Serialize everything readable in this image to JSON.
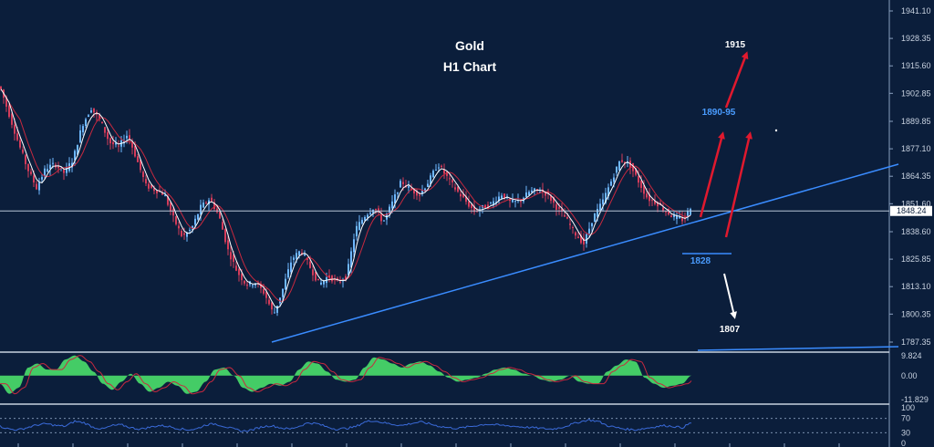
{
  "chart_data": {
    "type": "candlestick-with-indicators",
    "title": "Gold",
    "subtitle": "H1 Chart",
    "colors": {
      "background": "#0b1e3b",
      "bull": "#6fb8ff",
      "bear": "#d43c5a",
      "trendline": "#3a8cff",
      "up_arrow": "#e0192e",
      "down_arrow": "#ffffff",
      "ma_white": "#ffffff",
      "ma_red": "#c8293f",
      "macd": "#44cc66",
      "rsi": "#3a6ad8",
      "grid_line": "#8aa0bf"
    },
    "price_axis": {
      "min": 1787.35,
      "max": 1941.1,
      "ticks": [
        "1941.10",
        "1928.35",
        "1915.60",
        "1902.85",
        "1889.85",
        "1877.10",
        "1864.35",
        "1851.60",
        "1838.60",
        "1825.85",
        "1813.10",
        "1800.35",
        "1787.35"
      ]
    },
    "current_price": {
      "value": 1848.24,
      "label": "1848.24"
    },
    "price_path": [
      [
        0,
        1906
      ],
      [
        10,
        1893
      ],
      [
        20,
        1880
      ],
      [
        30,
        1868
      ],
      [
        40,
        1859
      ],
      [
        50,
        1868
      ],
      [
        60,
        1870
      ],
      [
        70,
        1866
      ],
      [
        80,
        1872
      ],
      [
        90,
        1888
      ],
      [
        100,
        1896
      ],
      [
        110,
        1890
      ],
      [
        120,
        1880
      ],
      [
        130,
        1878
      ],
      [
        140,
        1884
      ],
      [
        150,
        1872
      ],
      [
        160,
        1860
      ],
      [
        170,
        1858
      ],
      [
        180,
        1856
      ],
      [
        190,
        1845
      ],
      [
        200,
        1836
      ],
      [
        210,
        1840
      ],
      [
        220,
        1850
      ],
      [
        230,
        1854
      ],
      [
        240,
        1846
      ],
      [
        250,
        1830
      ],
      [
        260,
        1820
      ],
      [
        270,
        1814
      ],
      [
        280,
        1815
      ],
      [
        290,
        1810
      ],
      [
        300,
        1800
      ],
      [
        310,
        1812
      ],
      [
        320,
        1826
      ],
      [
        330,
        1830
      ],
      [
        340,
        1822
      ],
      [
        350,
        1814
      ],
      [
        360,
        1818
      ],
      [
        370,
        1815
      ],
      [
        380,
        1818
      ],
      [
        390,
        1840
      ],
      [
        400,
        1846
      ],
      [
        410,
        1850
      ],
      [
        420,
        1843
      ],
      [
        430,
        1852
      ],
      [
        440,
        1862
      ],
      [
        450,
        1858
      ],
      [
        460,
        1856
      ],
      [
        470,
        1862
      ],
      [
        480,
        1870
      ],
      [
        490,
        1864
      ],
      [
        500,
        1858
      ],
      [
        510,
        1853
      ],
      [
        520,
        1848
      ],
      [
        530,
        1850
      ],
      [
        540,
        1852
      ],
      [
        550,
        1856
      ],
      [
        560,
        1852
      ],
      [
        570,
        1853
      ],
      [
        580,
        1857
      ],
      [
        590,
        1858
      ],
      [
        600,
        1856
      ],
      [
        610,
        1850
      ],
      [
        620,
        1845
      ],
      [
        630,
        1838
      ],
      [
        640,
        1833
      ],
      [
        650,
        1845
      ],
      [
        660,
        1852
      ],
      [
        670,
        1862
      ],
      [
        680,
        1872
      ],
      [
        690,
        1870
      ],
      [
        700,
        1862
      ],
      [
        710,
        1854
      ],
      [
        720,
        1852
      ],
      [
        730,
        1848
      ],
      [
        740,
        1845
      ],
      [
        750,
        1844
      ],
      [
        758,
        1851
      ]
    ],
    "annotations": [
      {
        "label": "1915",
        "kind": "target-up"
      },
      {
        "label": "1890-95",
        "kind": "target-up"
      },
      {
        "label": "1828",
        "kind": "support"
      },
      {
        "label": "1807",
        "kind": "target-down"
      }
    ],
    "macd": {
      "axis_ticks": [
        "9.824",
        "0.00",
        "-11.829"
      ],
      "min": -11.829,
      "max": 9.824,
      "values": [
        -4,
        -9,
        -6,
        4,
        6,
        3,
        3,
        8,
        10,
        7,
        2,
        -4,
        -7,
        -3,
        1,
        -4,
        -8,
        -6,
        -3,
        -5,
        -9,
        -8,
        -3,
        3,
        4,
        0,
        -6,
        -8,
        -6,
        -4,
        -5,
        -3,
        3,
        7,
        6,
        2,
        -2,
        -3,
        -2,
        4,
        9,
        8,
        6,
        4,
        6,
        7,
        5,
        2,
        -1,
        -3,
        -2,
        -1,
        1,
        3,
        4,
        3,
        1,
        0,
        -2,
        -3,
        -2,
        0,
        -3,
        -4,
        -4,
        2,
        5,
        8,
        7,
        -1,
        -4,
        -6,
        -5,
        -4,
        0
      ]
    },
    "rsi": {
      "axis_ticks": [
        "100",
        "70",
        "30",
        "0"
      ],
      "min": 0,
      "max": 100,
      "levels": [
        70,
        30
      ],
      "values": [
        48,
        40,
        38,
        45,
        52,
        55,
        50,
        48,
        62,
        58,
        45,
        40,
        50,
        52,
        44,
        40,
        45,
        50,
        48,
        42,
        38,
        40,
        52,
        55,
        48,
        40,
        34,
        38,
        46,
        50,
        44,
        40,
        48,
        58,
        55,
        46,
        40,
        42,
        46,
        60,
        64,
        58,
        54,
        50,
        56,
        60,
        55,
        48,
        44,
        42,
        46,
        50,
        54,
        52,
        50,
        48,
        46,
        44,
        42,
        40,
        44,
        52,
        60,
        66,
        62,
        50,
        44,
        40,
        38,
        42,
        46,
        50,
        48,
        44,
        58
      ]
    }
  }
}
